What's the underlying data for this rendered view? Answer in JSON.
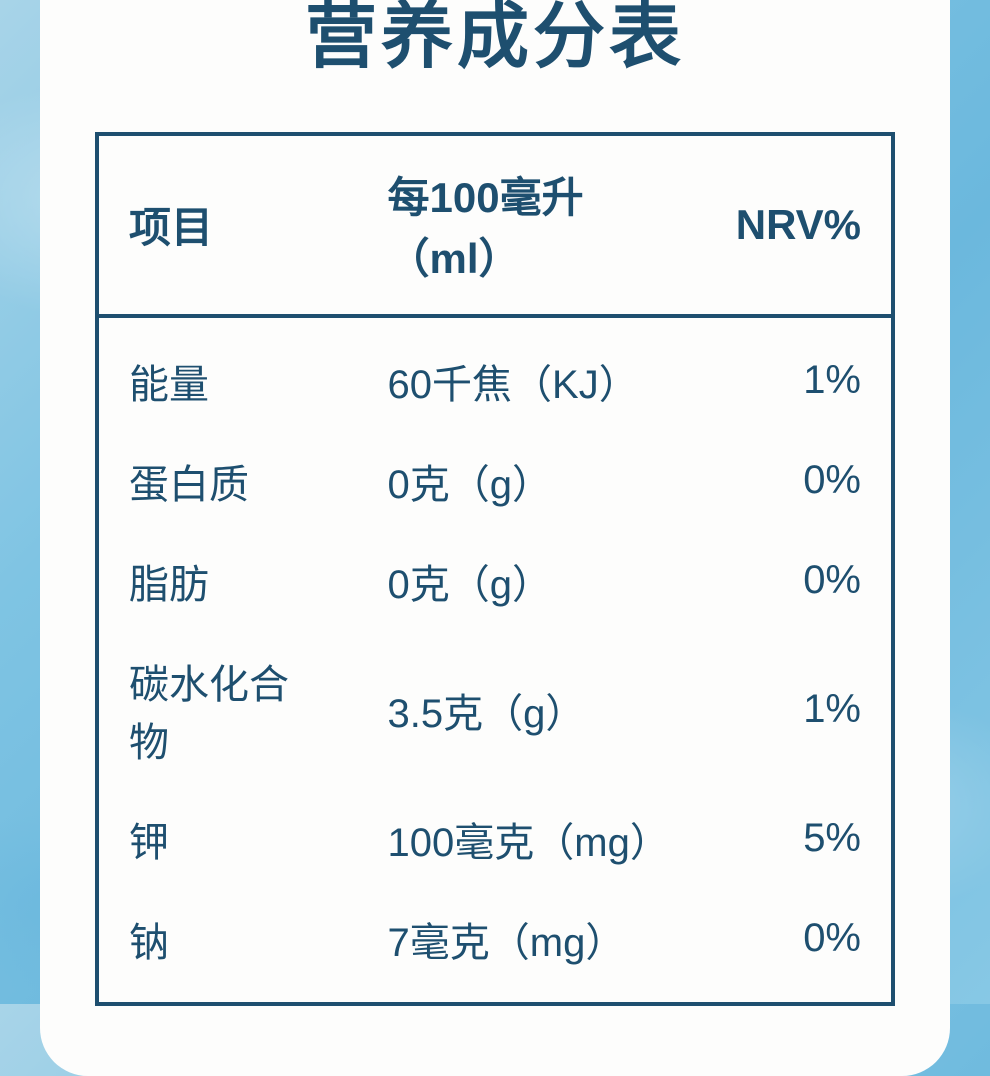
{
  "title": "营养成分表",
  "table": {
    "border_color": "#1e4f6f",
    "text_color": "#1e4f6f",
    "background_color": "#fdfdfc",
    "title_fontsize": 72,
    "header_fontsize": 42,
    "cell_fontsize": 40,
    "columns": [
      {
        "label": "项目",
        "align": "left"
      },
      {
        "label": "每100毫升（ml）",
        "align": "left"
      },
      {
        "label": "NRV%",
        "align": "right"
      }
    ],
    "rows": [
      {
        "item": "能量",
        "per100": "60千焦（KJ）",
        "nrv": "1%"
      },
      {
        "item": "蛋白质",
        "per100": "0克（g）",
        "nrv": "0%"
      },
      {
        "item": "脂肪",
        "per100": "0克（g）",
        "nrv": "0%"
      },
      {
        "item": "碳水化合物",
        "per100": "3.5克（g）",
        "nrv": "1%"
      },
      {
        "item": "钾",
        "per100": "100毫克（mg）",
        "nrv": "5%"
      },
      {
        "item": "钠",
        "per100": "7毫克（mg）",
        "nrv": "0%"
      }
    ]
  },
  "page_background": {
    "gradient_stops": [
      "#a8d4e8",
      "#7fc4e3",
      "#6bb8dd",
      "#87c8e5"
    ]
  },
  "card": {
    "border_radius": 48,
    "background_color": "#fdfdfc"
  }
}
